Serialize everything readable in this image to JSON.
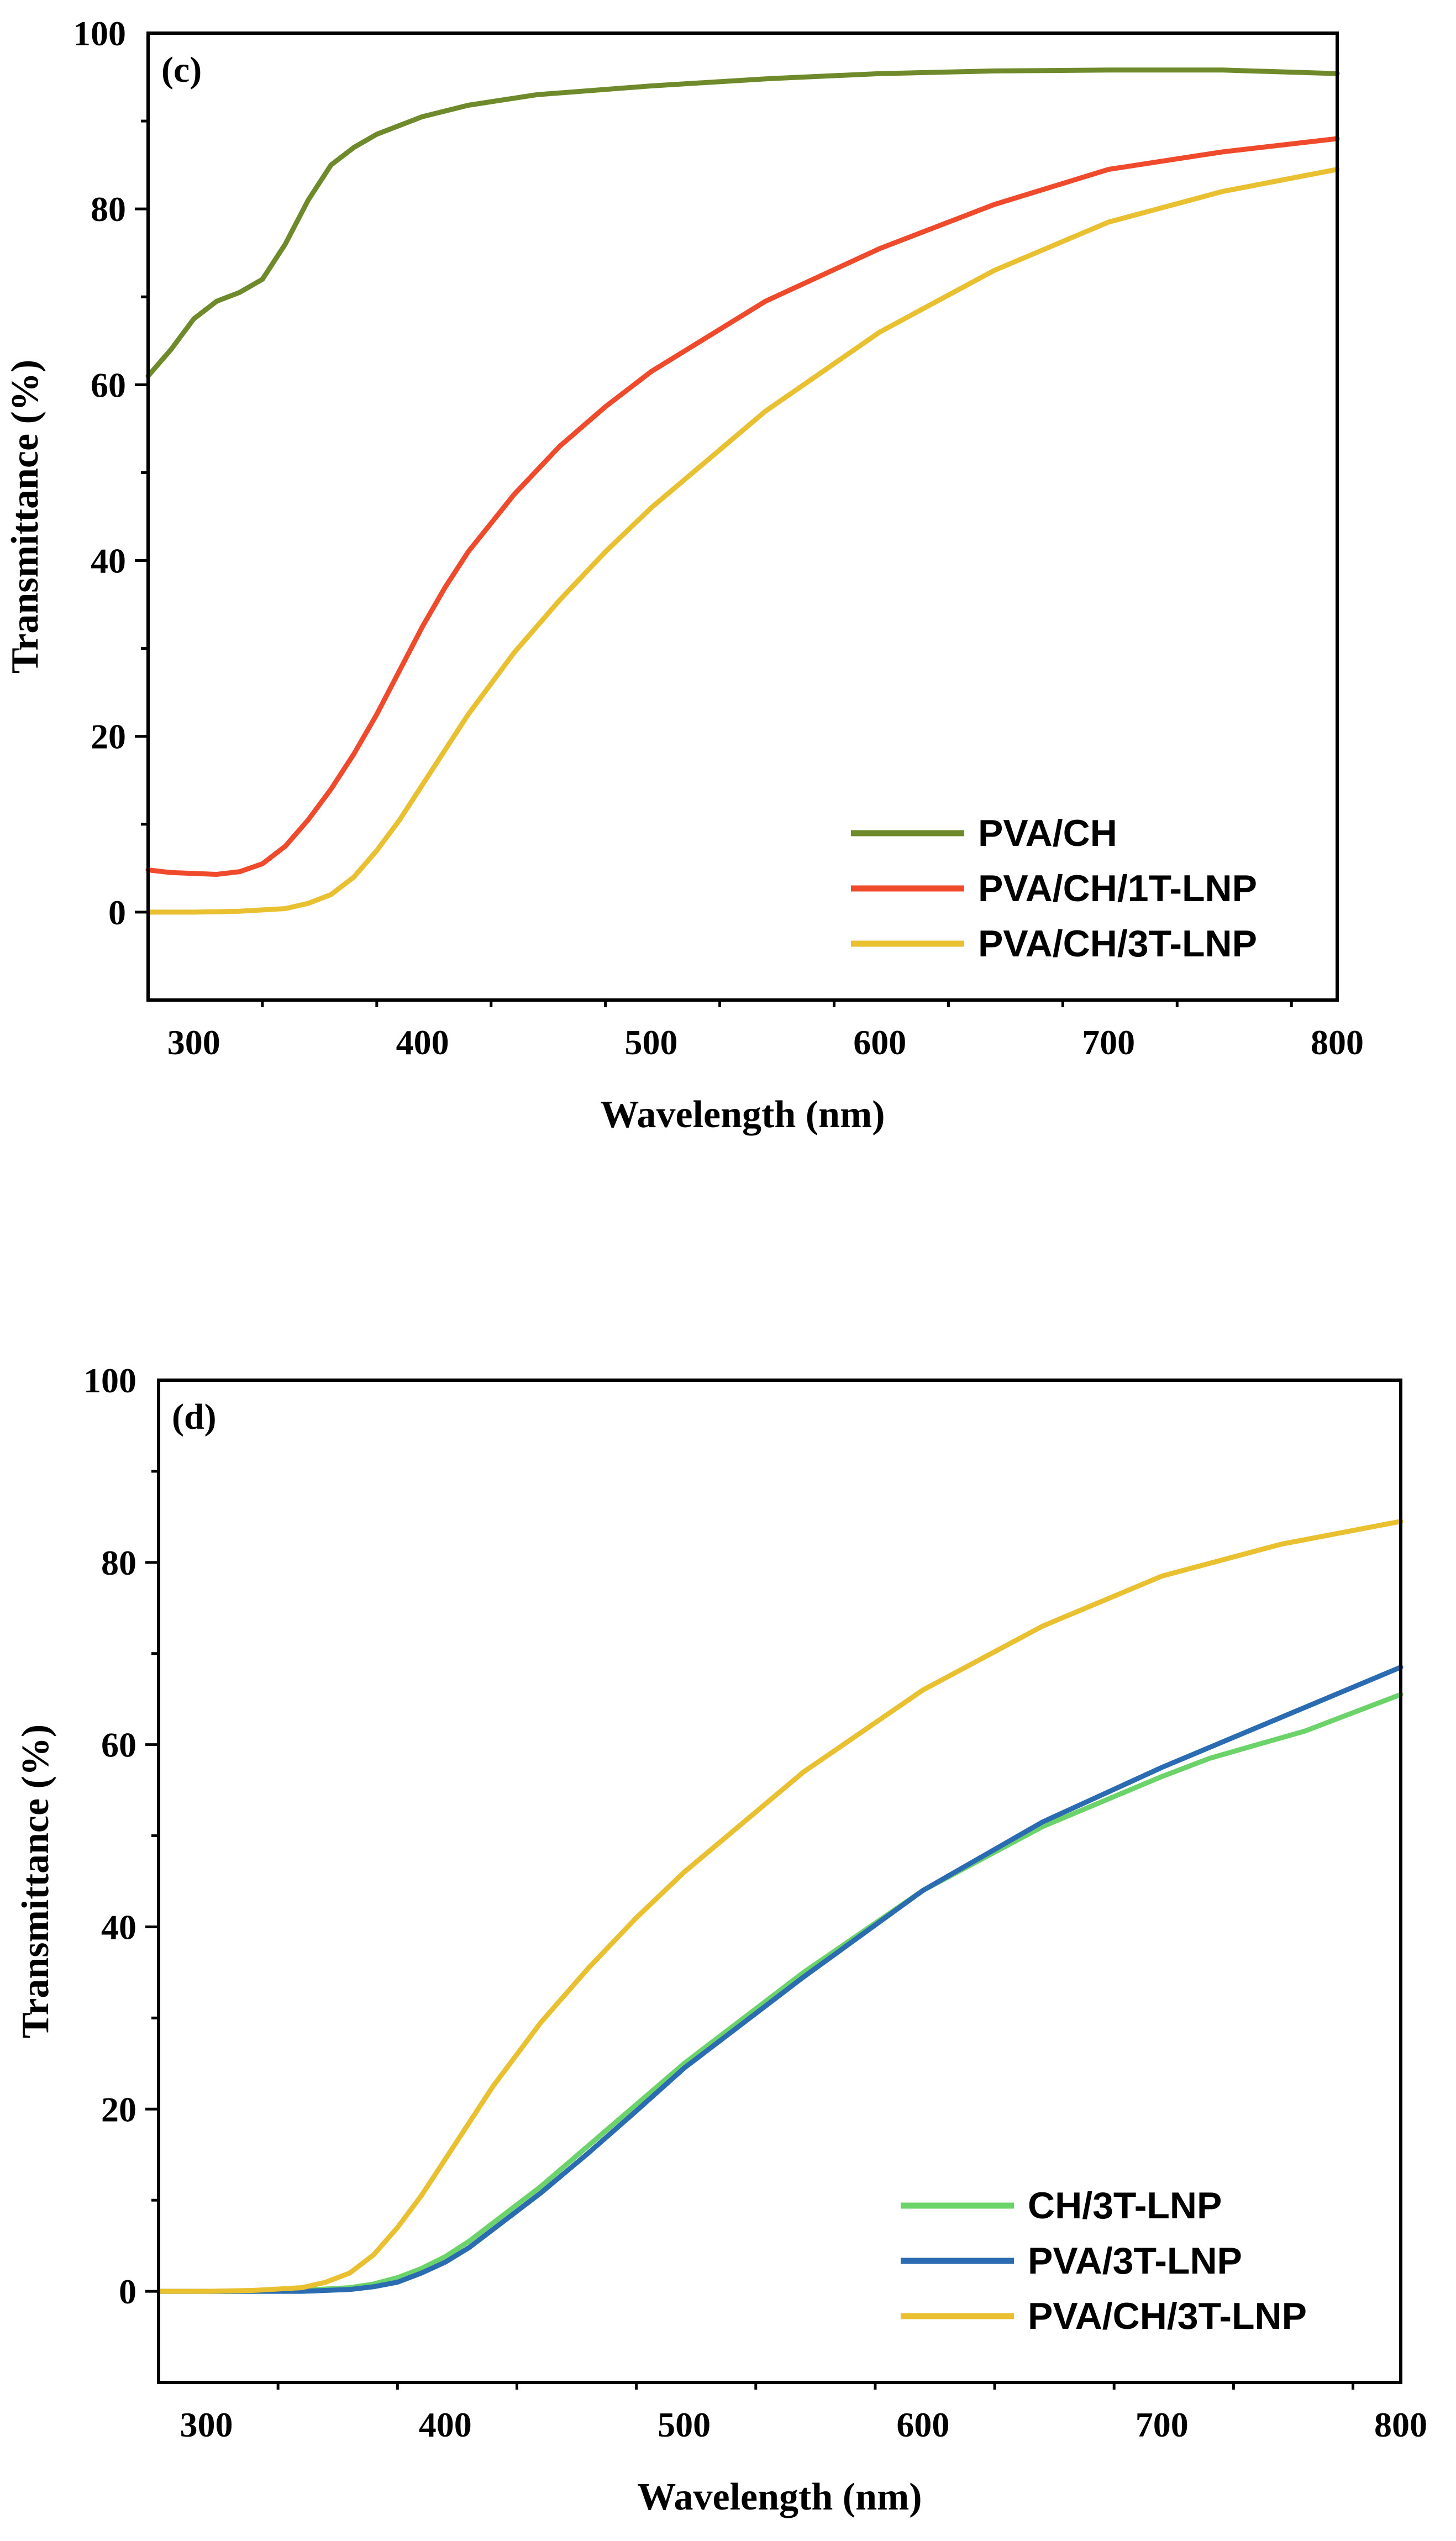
{
  "chart_data": [
    {
      "type": "line",
      "panel_label": "(c)",
      "xlabel": "Wavelength (nm)",
      "ylabel": "Transmittance (%)",
      "xlim": [
        280,
        800
      ],
      "ylim": [
        -10,
        100
      ],
      "xticks": [
        300,
        400,
        500,
        600,
        700,
        800
      ],
      "yticks": [
        0,
        20,
        40,
        60,
        80,
        100
      ],
      "legend_position": "bottom-right",
      "series": [
        {
          "name": "PVA/CH",
          "color": "#6f8a2a",
          "x": [
            280,
            290,
            300,
            310,
            320,
            330,
            340,
            350,
            360,
            370,
            380,
            400,
            420,
            450,
            500,
            550,
            600,
            650,
            700,
            750,
            800
          ],
          "y": [
            61,
            64,
            67.5,
            69.5,
            70.5,
            72,
            76,
            81,
            85,
            87,
            88.5,
            90.5,
            91.8,
            93,
            94,
            94.8,
            95.4,
            95.7,
            95.8,
            95.8,
            95.4
          ]
        },
        {
          "name": "PVA/CH/1T-LNP",
          "color": "#f04a2c",
          "x": [
            280,
            290,
            300,
            310,
            320,
            330,
            340,
            350,
            360,
            370,
            380,
            390,
            400,
            410,
            420,
            440,
            460,
            480,
            500,
            550,
            600,
            650,
            700,
            750,
            800
          ],
          "y": [
            4.8,
            4.5,
            4.4,
            4.3,
            4.6,
            5.5,
            7.5,
            10.5,
            14,
            18,
            22.5,
            27.5,
            32.5,
            37,
            41,
            47.5,
            53,
            57.5,
            61.5,
            69.5,
            75.5,
            80.5,
            84.5,
            86.5,
            88
          ]
        },
        {
          "name": "PVA/CH/3T-LNP",
          "color": "#e8c030",
          "x": [
            280,
            300,
            320,
            340,
            350,
            360,
            370,
            380,
            390,
            400,
            410,
            420,
            440,
            460,
            480,
            500,
            550,
            600,
            650,
            700,
            750,
            800
          ],
          "y": [
            0,
            0,
            0.1,
            0.4,
            1,
            2,
            4,
            7,
            10.5,
            14.5,
            18.5,
            22.5,
            29.5,
            35.5,
            41,
            46,
            57,
            66,
            73,
            78.5,
            82,
            84.5
          ]
        }
      ]
    },
    {
      "type": "line",
      "panel_label": "(d)",
      "xlabel": "Wavelength (nm)",
      "ylabel": "Transmittance (%)",
      "xlim": [
        280,
        800
      ],
      "ylim": [
        -10,
        100
      ],
      "xticks": [
        300,
        400,
        500,
        600,
        700,
        800
      ],
      "yticks": [
        0,
        20,
        40,
        60,
        80,
        100
      ],
      "legend_position": "bottom-right",
      "series": [
        {
          "name": "CH/3T-LNP",
          "color": "#6cd36a",
          "x": [
            280,
            300,
            320,
            340,
            360,
            370,
            380,
            390,
            400,
            410,
            420,
            440,
            460,
            480,
            500,
            550,
            600,
            650,
            700,
            720,
            740,
            760,
            800
          ],
          "y": [
            0,
            0,
            0,
            0.1,
            0.4,
            0.8,
            1.5,
            2.5,
            3.8,
            5.5,
            7.5,
            11.5,
            16,
            20.5,
            25,
            35,
            44,
            51,
            56.5,
            58.5,
            60,
            61.5,
            65.5
          ]
        },
        {
          "name": "PVA/3T-LNP",
          "color": "#2a6bb2",
          "x": [
            280,
            300,
            320,
            340,
            360,
            370,
            380,
            390,
            400,
            410,
            420,
            440,
            460,
            480,
            500,
            550,
            600,
            650,
            700,
            750,
            800
          ],
          "y": [
            0,
            0,
            0,
            0,
            0.2,
            0.5,
            1,
            2,
            3.2,
            4.8,
            6.8,
            10.8,
            15.2,
            19.8,
            24.5,
            34.5,
            44,
            51.5,
            57.5,
            63,
            68.5
          ]
        },
        {
          "name": "PVA/CH/3T-LNP",
          "color": "#e8c030",
          "x": [
            280,
            300,
            320,
            340,
            350,
            360,
            370,
            380,
            390,
            400,
            410,
            420,
            440,
            460,
            480,
            500,
            550,
            600,
            650,
            700,
            750,
            800
          ],
          "y": [
            0,
            0,
            0.1,
            0.4,
            1,
            2,
            4,
            7,
            10.5,
            14.5,
            18.5,
            22.5,
            29.5,
            35.5,
            41,
            46,
            57,
            66,
            73,
            78.5,
            82,
            84.5
          ]
        }
      ]
    }
  ]
}
